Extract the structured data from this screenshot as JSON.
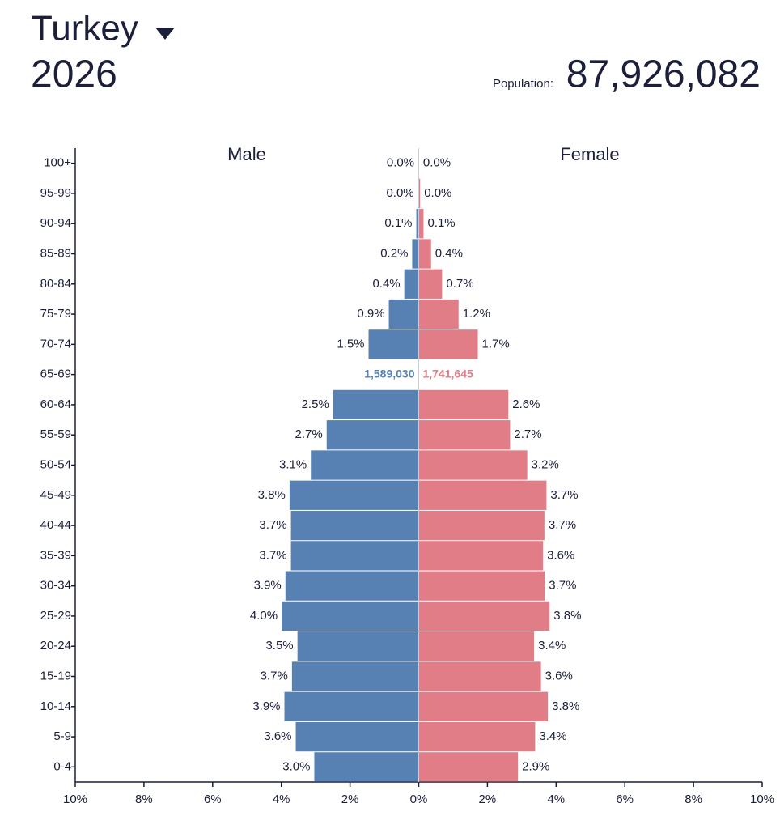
{
  "header": {
    "country": "Turkey",
    "year": "2026",
    "population_label": "Population:",
    "population": "87,926,082"
  },
  "chart_data": {
    "type": "pyramid",
    "categories": [
      "100+",
      "95-99",
      "90-94",
      "85-89",
      "80-84",
      "75-79",
      "70-74",
      "65-69",
      "60-64",
      "55-59",
      "50-54",
      "45-49",
      "40-44",
      "35-39",
      "30-34",
      "25-29",
      "20-24",
      "15-19",
      "10-14",
      "5-9",
      "0-4"
    ],
    "hover_index": 7,
    "series": [
      {
        "name": "Male",
        "color": "#5881b3",
        "values": [
          0.01,
          0.02,
          0.07,
          0.19,
          0.42,
          0.87,
          1.46,
          null,
          2.49,
          2.68,
          3.14,
          3.76,
          3.72,
          3.72,
          3.88,
          3.99,
          3.53,
          3.69,
          3.91,
          3.58,
          3.04
        ],
        "value_labels": [
          "0.0%",
          "0.0%",
          "0.1%",
          "0.2%",
          "0.4%",
          "0.9%",
          "1.5%",
          null,
          "2.5%",
          "2.7%",
          "3.1%",
          "3.8%",
          "3.7%",
          "3.7%",
          "3.9%",
          "4.0%",
          "3.5%",
          "3.7%",
          "3.9%",
          "3.6%",
          "3.0%"
        ],
        "hover_value": 1589030,
        "hover_label": "1,589,030"
      },
      {
        "name": "Female",
        "color": "#e07d87",
        "values": [
          0.01,
          0.04,
          0.14,
          0.36,
          0.68,
          1.16,
          1.72,
          null,
          2.61,
          2.66,
          3.16,
          3.72,
          3.66,
          3.62,
          3.67,
          3.81,
          3.36,
          3.56,
          3.76,
          3.39,
          2.89
        ],
        "value_labels": [
          "0.0%",
          "0.0%",
          "0.1%",
          "0.4%",
          "0.7%",
          "1.2%",
          "1.7%",
          null,
          "2.6%",
          "2.7%",
          "3.2%",
          "3.7%",
          "3.7%",
          "3.6%",
          "3.7%",
          "3.8%",
          "3.4%",
          "3.6%",
          "3.8%",
          "3.4%",
          "2.9%"
        ],
        "hover_value": 1741645,
        "hover_label": "1,741,645"
      }
    ],
    "xlim": [
      -10,
      10
    ],
    "xticks": [
      {
        "value": -10,
        "label": "10%"
      },
      {
        "value": -8,
        "label": "8%"
      },
      {
        "value": -6,
        "label": "6%"
      },
      {
        "value": -4,
        "label": "4%"
      },
      {
        "value": -2,
        "label": "2%"
      },
      {
        "value": 0,
        "label": "0%"
      },
      {
        "value": 2,
        "label": "2%"
      },
      {
        "value": 4,
        "label": "4%"
      },
      {
        "value": 6,
        "label": "6%"
      },
      {
        "value": 8,
        "label": "8%"
      },
      {
        "value": 10,
        "label": "10%"
      }
    ]
  }
}
